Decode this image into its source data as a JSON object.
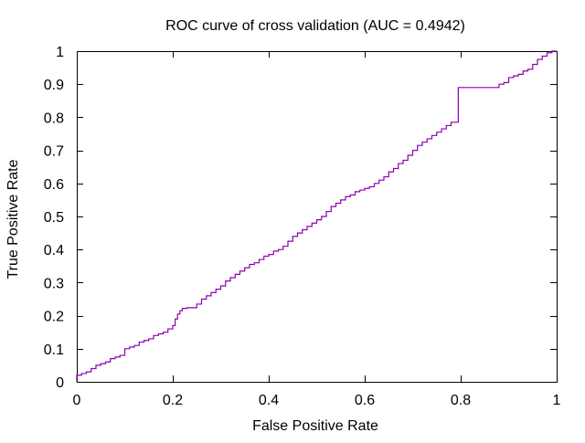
{
  "chart_data": {
    "type": "line",
    "title": "ROC curve of cross validation (AUC = 0.4942)",
    "xlabel": "False Positive Rate",
    "ylabel": "True Positive Rate",
    "xlim": [
      0,
      1
    ],
    "ylim": [
      0,
      1
    ],
    "grid": false,
    "legend": "none",
    "x_ticks": [
      0,
      0.2,
      0.4,
      0.6,
      0.8,
      1
    ],
    "x_tick_labels": [
      "0",
      "0.2",
      "0.4",
      "0.6",
      "0.8",
      "1"
    ],
    "y_ticks": [
      0,
      0.1,
      0.2,
      0.3,
      0.4,
      0.5,
      0.6,
      0.7,
      0.8,
      0.9,
      1
    ],
    "y_tick_labels": [
      "0",
      "0.1",
      "0.2",
      "0.3",
      "0.4",
      "0.5",
      "0.6",
      "0.7",
      "0.8",
      "0.9",
      "1"
    ],
    "series": [
      {
        "color": "#8b00b0",
        "x": [
          0,
          0,
          0.01,
          0.02,
          0.03,
          0.04,
          0.05,
          0.06,
          0.07,
          0.08,
          0.09,
          0.1,
          0.11,
          0.12,
          0.13,
          0.14,
          0.15,
          0.16,
          0.17,
          0.18,
          0.19,
          0.2,
          0.205,
          0.21,
          0.215,
          0.22,
          0.23,
          0.25,
          0.26,
          0.27,
          0.28,
          0.29,
          0.3,
          0.31,
          0.32,
          0.33,
          0.34,
          0.35,
          0.36,
          0.37,
          0.38,
          0.39,
          0.4,
          0.41,
          0.42,
          0.43,
          0.44,
          0.45,
          0.46,
          0.47,
          0.48,
          0.49,
          0.5,
          0.51,
          0.52,
          0.53,
          0.54,
          0.55,
          0.56,
          0.57,
          0.58,
          0.59,
          0.6,
          0.61,
          0.62,
          0.63,
          0.64,
          0.65,
          0.66,
          0.67,
          0.68,
          0.69,
          0.7,
          0.71,
          0.72,
          0.73,
          0.74,
          0.75,
          0.76,
          0.77,
          0.78,
          0.79,
          0.795,
          0.795,
          0.8,
          0.83,
          0.87,
          0.88,
          0.89,
          0.9,
          0.91,
          0.92,
          0.93,
          0.94,
          0.95,
          0.96,
          0.97,
          0.98,
          0.99,
          1
        ],
        "y": [
          0,
          0.02,
          0.025,
          0.03,
          0.04,
          0.05,
          0.055,
          0.06,
          0.07,
          0.075,
          0.08,
          0.1,
          0.105,
          0.11,
          0.12,
          0.125,
          0.13,
          0.14,
          0.145,
          0.15,
          0.16,
          0.17,
          0.19,
          0.205,
          0.215,
          0.222,
          0.224,
          0.235,
          0.25,
          0.26,
          0.27,
          0.28,
          0.29,
          0.305,
          0.315,
          0.325,
          0.335,
          0.345,
          0.355,
          0.36,
          0.37,
          0.38,
          0.385,
          0.395,
          0.4,
          0.41,
          0.425,
          0.44,
          0.45,
          0.46,
          0.47,
          0.48,
          0.49,
          0.5,
          0.515,
          0.53,
          0.54,
          0.55,
          0.56,
          0.565,
          0.575,
          0.58,
          0.585,
          0.59,
          0.6,
          0.61,
          0.62,
          0.635,
          0.645,
          0.66,
          0.67,
          0.685,
          0.7,
          0.715,
          0.725,
          0.735,
          0.745,
          0.755,
          0.765,
          0.775,
          0.785,
          0.785,
          0.785,
          0.89,
          0.89,
          0.89,
          0.89,
          0.9,
          0.905,
          0.92,
          0.925,
          0.93,
          0.94,
          0.945,
          0.96,
          0.975,
          0.985,
          0.995,
          1,
          1
        ]
      }
    ]
  }
}
